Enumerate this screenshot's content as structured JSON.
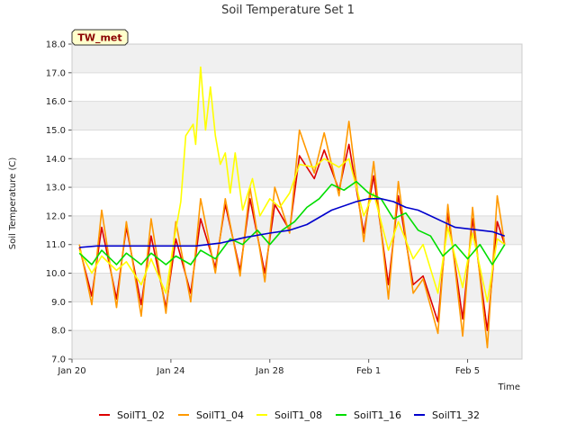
{
  "chart_data": {
    "type": "line",
    "title": "Soil Temperature Set 1",
    "xlabel": "Time",
    "ylabel": "Soil Temperature (C)",
    "badge": "TW_met",
    "ylim": [
      7.0,
      18.0
    ],
    "yticks": [
      "7.0",
      "8.0",
      "9.0",
      "10.0",
      "11.0",
      "12.0",
      "13.0",
      "14.0",
      "15.0",
      "16.0",
      "17.0",
      "18.0"
    ],
    "xlim_days": [
      0,
      16.4
    ],
    "xticks": [
      {
        "label": "Jan 20",
        "day": 0
      },
      {
        "label": "Jan 24",
        "day": 4
      },
      {
        "label": "Jan 28",
        "day": 8
      },
      {
        "label": "Feb 1",
        "day": 12
      },
      {
        "label": "Feb 5",
        "day": 16
      }
    ],
    "grid": "horizontal bands",
    "legend_position": "bottom",
    "series": [
      {
        "name": "SoilT1_02",
        "color": "#dd0000",
        "points": [
          [
            0.3,
            10.9
          ],
          [
            0.8,
            9.2
          ],
          [
            1.2,
            11.6
          ],
          [
            1.8,
            9.1
          ],
          [
            2.2,
            11.6
          ],
          [
            2.8,
            8.9
          ],
          [
            3.2,
            11.3
          ],
          [
            3.8,
            8.8
          ],
          [
            4.2,
            11.2
          ],
          [
            4.8,
            9.3
          ],
          [
            5.2,
            11.9
          ],
          [
            5.8,
            10.2
          ],
          [
            6.2,
            12.4
          ],
          [
            6.8,
            10.1
          ],
          [
            7.2,
            12.6
          ],
          [
            7.8,
            10.0
          ],
          [
            8.2,
            12.4
          ],
          [
            8.8,
            11.5
          ],
          [
            9.2,
            14.1
          ],
          [
            9.8,
            13.3
          ],
          [
            10.2,
            14.3
          ],
          [
            10.8,
            12.9
          ],
          [
            11.2,
            14.5
          ],
          [
            11.8,
            11.4
          ],
          [
            12.2,
            13.4
          ],
          [
            12.8,
            9.6
          ],
          [
            13.2,
            12.7
          ],
          [
            13.8,
            9.6
          ],
          [
            14.2,
            9.9
          ],
          [
            14.8,
            8.3
          ],
          [
            15.2,
            12.1
          ],
          [
            15.8,
            8.4
          ],
          [
            16.2,
            11.9
          ],
          [
            16.8,
            8.0
          ],
          [
            17.2,
            11.8
          ],
          [
            17.5,
            11.0
          ]
        ]
      },
      {
        "name": "SoilT1_04",
        "color": "#ff9900",
        "points": [
          [
            0.3,
            11.0
          ],
          [
            0.8,
            8.9
          ],
          [
            1.2,
            12.2
          ],
          [
            1.8,
            8.8
          ],
          [
            2.2,
            11.8
          ],
          [
            2.8,
            8.5
          ],
          [
            3.2,
            11.9
          ],
          [
            3.8,
            8.6
          ],
          [
            4.2,
            11.8
          ],
          [
            4.8,
            9.0
          ],
          [
            5.2,
            12.6
          ],
          [
            5.8,
            10.0
          ],
          [
            6.2,
            12.6
          ],
          [
            6.8,
            9.9
          ],
          [
            7.2,
            13.0
          ],
          [
            7.8,
            9.7
          ],
          [
            8.2,
            13.0
          ],
          [
            8.8,
            11.4
          ],
          [
            9.2,
            15.0
          ],
          [
            9.8,
            13.5
          ],
          [
            10.2,
            14.9
          ],
          [
            10.8,
            12.7
          ],
          [
            11.2,
            15.3
          ],
          [
            11.8,
            11.1
          ],
          [
            12.2,
            13.9
          ],
          [
            12.8,
            9.1
          ],
          [
            13.2,
            13.2
          ],
          [
            13.8,
            9.3
          ],
          [
            14.2,
            9.8
          ],
          [
            14.8,
            7.9
          ],
          [
            15.2,
            12.4
          ],
          [
            15.8,
            7.8
          ],
          [
            16.2,
            12.3
          ],
          [
            16.8,
            7.4
          ],
          [
            17.2,
            12.7
          ],
          [
            17.5,
            11.0
          ]
        ]
      },
      {
        "name": "SoilT1_08",
        "color": "#ffff00",
        "points": [
          [
            0.3,
            10.8
          ],
          [
            0.8,
            10.0
          ],
          [
            1.2,
            10.6
          ],
          [
            1.8,
            10.1
          ],
          [
            2.2,
            10.4
          ],
          [
            2.8,
            9.6
          ],
          [
            3.2,
            10.5
          ],
          [
            3.8,
            9.3
          ],
          [
            4.1,
            11.0
          ],
          [
            4.4,
            12.5
          ],
          [
            4.6,
            14.8
          ],
          [
            4.9,
            15.2
          ],
          [
            5.0,
            14.5
          ],
          [
            5.2,
            17.2
          ],
          [
            5.4,
            15.0
          ],
          [
            5.6,
            16.5
          ],
          [
            5.8,
            14.8
          ],
          [
            6.0,
            13.8
          ],
          [
            6.2,
            14.2
          ],
          [
            6.4,
            12.8
          ],
          [
            6.6,
            14.2
          ],
          [
            6.9,
            12.2
          ],
          [
            7.3,
            13.3
          ],
          [
            7.6,
            12.0
          ],
          [
            8.0,
            12.6
          ],
          [
            8.4,
            12.3
          ],
          [
            8.8,
            12.8
          ],
          [
            9.2,
            13.8
          ],
          [
            9.8,
            13.7
          ],
          [
            10.2,
            14.0
          ],
          [
            10.8,
            13.7
          ],
          [
            11.2,
            14.0
          ],
          [
            11.8,
            12.0
          ],
          [
            12.2,
            12.8
          ],
          [
            12.8,
            10.8
          ],
          [
            13.2,
            11.8
          ],
          [
            13.8,
            10.5
          ],
          [
            14.2,
            11.0
          ],
          [
            14.8,
            9.3
          ],
          [
            15.2,
            11.6
          ],
          [
            15.8,
            9.5
          ],
          [
            16.2,
            11.4
          ],
          [
            16.8,
            9.0
          ],
          [
            17.2,
            11.2
          ],
          [
            17.5,
            11.0
          ]
        ]
      },
      {
        "name": "SoilT1_16",
        "color": "#00dd00",
        "points": [
          [
            0.3,
            10.7
          ],
          [
            0.8,
            10.3
          ],
          [
            1.2,
            10.8
          ],
          [
            1.8,
            10.3
          ],
          [
            2.2,
            10.7
          ],
          [
            2.8,
            10.3
          ],
          [
            3.2,
            10.7
          ],
          [
            3.8,
            10.3
          ],
          [
            4.2,
            10.6
          ],
          [
            4.8,
            10.3
          ],
          [
            5.2,
            10.8
          ],
          [
            5.8,
            10.5
          ],
          [
            6.4,
            11.2
          ],
          [
            6.9,
            11.0
          ],
          [
            7.5,
            11.5
          ],
          [
            8.0,
            11.0
          ],
          [
            8.5,
            11.5
          ],
          [
            9.0,
            11.8
          ],
          [
            9.5,
            12.3
          ],
          [
            10.0,
            12.6
          ],
          [
            10.5,
            13.1
          ],
          [
            11.0,
            12.9
          ],
          [
            11.5,
            13.2
          ],
          [
            12.0,
            12.8
          ],
          [
            12.5,
            12.6
          ],
          [
            13.0,
            11.9
          ],
          [
            13.5,
            12.1
          ],
          [
            14.0,
            11.5
          ],
          [
            14.5,
            11.3
          ],
          [
            15.0,
            10.6
          ],
          [
            15.5,
            11.0
          ],
          [
            16.0,
            10.5
          ],
          [
            16.5,
            11.0
          ],
          [
            17.0,
            10.3
          ],
          [
            17.5,
            11.0
          ]
        ]
      },
      {
        "name": "SoilT1_32",
        "color": "#0000cc",
        "points": [
          [
            0.3,
            10.9
          ],
          [
            1.0,
            10.95
          ],
          [
            2.0,
            10.95
          ],
          [
            3.0,
            10.95
          ],
          [
            4.0,
            10.95
          ],
          [
            5.0,
            10.95
          ],
          [
            6.0,
            11.05
          ],
          [
            7.0,
            11.25
          ],
          [
            8.0,
            11.4
          ],
          [
            8.8,
            11.5
          ],
          [
            9.5,
            11.7
          ],
          [
            10.5,
            12.2
          ],
          [
            11.5,
            12.5
          ],
          [
            12.0,
            12.6
          ],
          [
            12.5,
            12.6
          ],
          [
            13.0,
            12.5
          ],
          [
            13.5,
            12.3
          ],
          [
            14.0,
            12.2
          ],
          [
            14.5,
            12.0
          ],
          [
            15.0,
            11.8
          ],
          [
            15.5,
            11.6
          ],
          [
            16.0,
            11.55
          ],
          [
            16.5,
            11.5
          ],
          [
            17.0,
            11.45
          ],
          [
            17.5,
            11.3
          ]
        ]
      }
    ]
  }
}
